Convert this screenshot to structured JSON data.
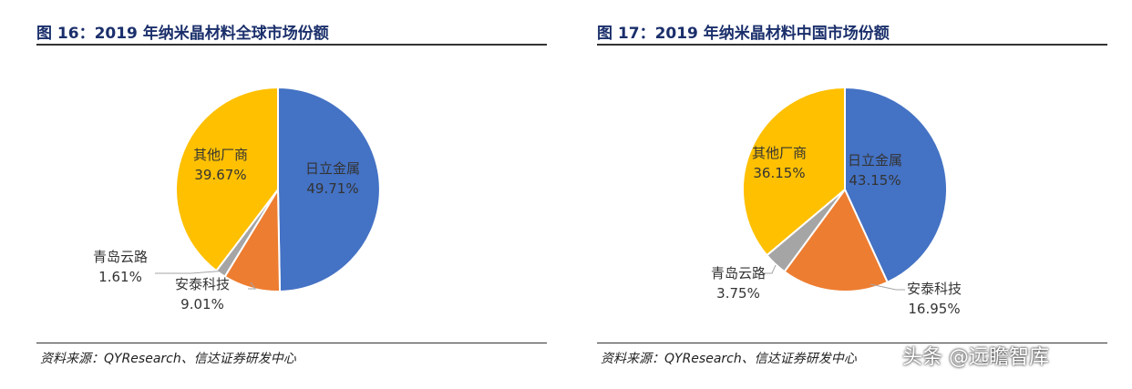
{
  "charts": [
    {
      "title": "图 16：2019 年纳米晶材料全球市场份额",
      "source": "资料来源：QYResearch、信达证券研发中心",
      "chart_data": {
        "type": "pie",
        "slices": [
          {
            "label": "日立金属",
            "value": 49.71,
            "display": "49.71%",
            "color": "#4472c4"
          },
          {
            "label": "安泰科技",
            "value": 9.01,
            "display": "9.01%",
            "color": "#ed7d31"
          },
          {
            "label": "青岛云路",
            "value": 1.61,
            "display": "1.61%",
            "color": "#a5a5a5"
          },
          {
            "label": "其他厂商",
            "value": 39.67,
            "display": "39.67%",
            "color": "#ffc000"
          }
        ]
      }
    },
    {
      "title": "图 17：2019 年纳米晶材料中国市场份额",
      "source": "资料来源：QYResearch、信达证券研发中心",
      "chart_data": {
        "type": "pie",
        "slices": [
          {
            "label": "日立金属",
            "value": 43.15,
            "display": "43.15%",
            "color": "#4472c4"
          },
          {
            "label": "安泰科技",
            "value": 16.95,
            "display": "16.95%",
            "color": "#ed7d31"
          },
          {
            "label": "青岛云路",
            "value": 3.75,
            "display": "3.75%",
            "color": "#a5a5a5"
          },
          {
            "label": "其他厂商",
            "value": 36.15,
            "display": "36.15%",
            "color": "#ffc000"
          }
        ]
      }
    }
  ],
  "watermark": "头条 @远瞻智库"
}
